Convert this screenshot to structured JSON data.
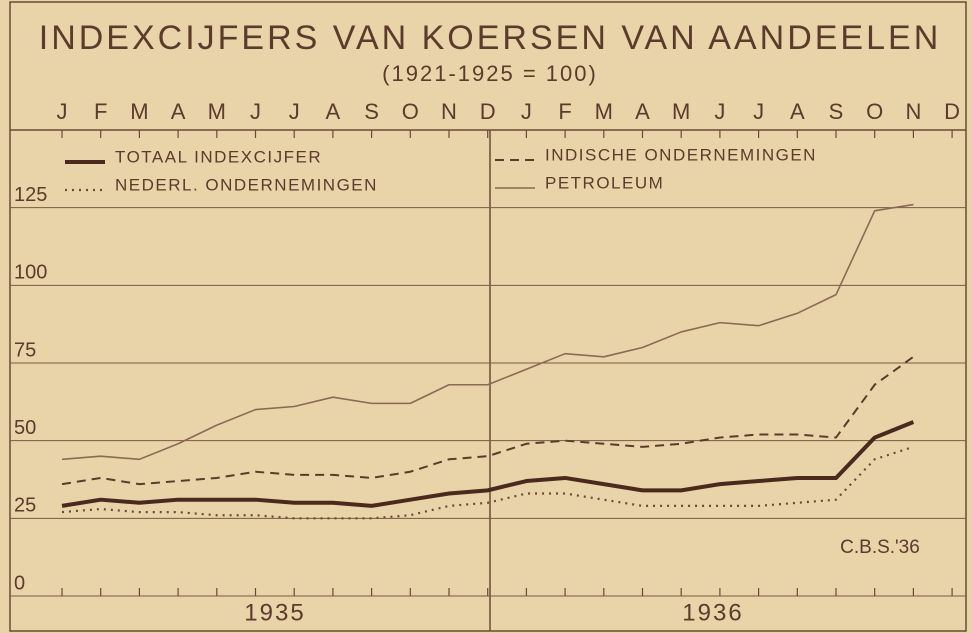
{
  "chart_data": {
    "type": "line",
    "title": "INDEXCIJFERS VAN KOERSEN VAN AANDEELEN",
    "subtitle": "(1921-1925 = 100)",
    "annotation": "C.B.S.'36",
    "categories": [
      "J",
      "F",
      "M",
      "A",
      "M",
      "J",
      "J",
      "A",
      "S",
      "O",
      "N",
      "D",
      "J",
      "F",
      "M",
      "A",
      "M",
      "J",
      "J",
      "A",
      "S",
      "O",
      "N",
      "D"
    ],
    "year_labels": [
      "1935",
      "1936"
    ],
    "ylim": [
      0,
      150
    ],
    "yticks": [
      0,
      25,
      50,
      75,
      100,
      125
    ],
    "grid": true,
    "series": [
      {
        "name": "TOTAAL INDEXCIJFER",
        "color": "#4a2a1e",
        "style": "solid-thick",
        "values": [
          29,
          31,
          30,
          31,
          31,
          31,
          30,
          30,
          29,
          31,
          33,
          34,
          37,
          38,
          36,
          34,
          34,
          36,
          37,
          38,
          38,
          51,
          56,
          null
        ]
      },
      {
        "name": "NEDERL. ONDERNEMINGEN",
        "color": "#6b4a36",
        "style": "dotted",
        "values": [
          27,
          28,
          27,
          27,
          26,
          26,
          25,
          25,
          25,
          26,
          29,
          30,
          33,
          33,
          31,
          29,
          29,
          29,
          29,
          30,
          31,
          44,
          48,
          null
        ]
      },
      {
        "name": "INDISCHE ONDERNEMINGEN",
        "color": "#5b3b2a",
        "style": "dashed",
        "values": [
          36,
          38,
          36,
          37,
          38,
          40,
          39,
          39,
          38,
          40,
          44,
          45,
          49,
          50,
          49,
          48,
          49,
          51,
          52,
          52,
          51,
          68,
          77,
          null
        ]
      },
      {
        "name": "PETROLEUM",
        "color": "#8a6a54",
        "style": "thin",
        "values": [
          44,
          45,
          44,
          49,
          55,
          60,
          61,
          64,
          62,
          62,
          68,
          68,
          73,
          78,
          77,
          80,
          85,
          88,
          87,
          91,
          97,
          124,
          126,
          null
        ]
      }
    ]
  }
}
